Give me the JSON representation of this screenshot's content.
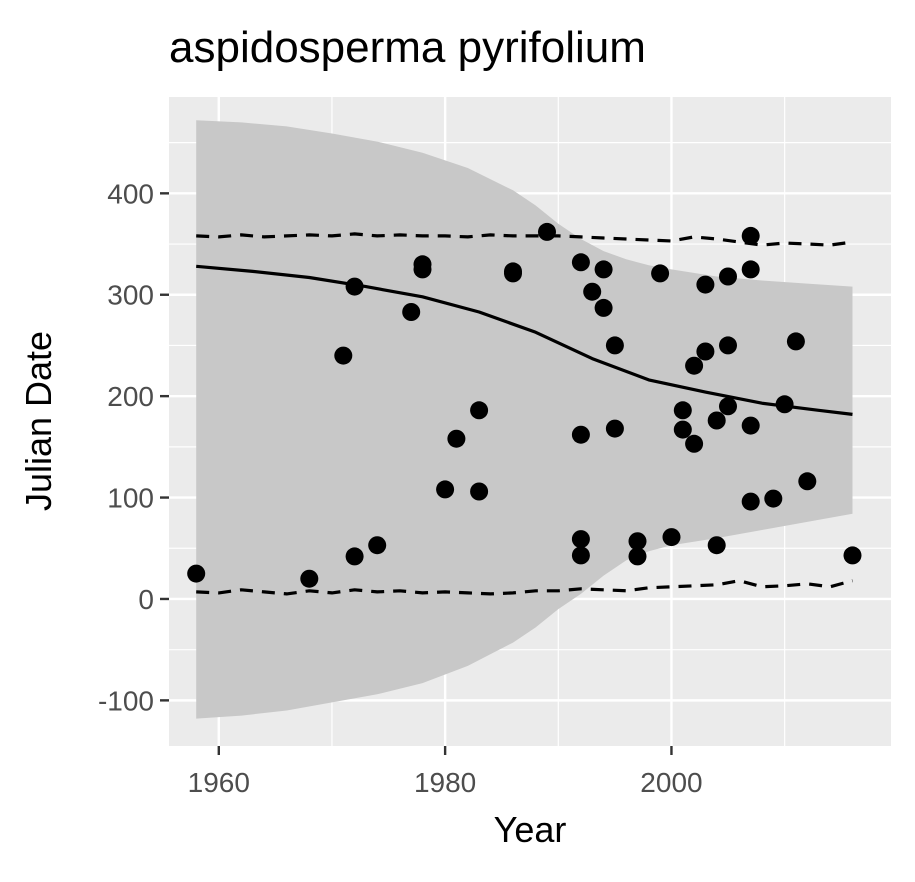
{
  "chart_data": {
    "type": "scatter",
    "title": "aspidosperma pyrifolium",
    "xlabel": "Year",
    "ylabel": "Julian Date",
    "xlim": [
      1955.6,
      2019.4
    ],
    "ylim": [
      -145,
      495
    ],
    "x_ticks": [
      1960,
      1980,
      2000
    ],
    "x_tick_labels": [
      "1960",
      "1980",
      "2000"
    ],
    "y_ticks": [
      -100,
      0,
      100,
      200,
      300,
      400
    ],
    "y_tick_labels": [
      "-100",
      "0",
      "100",
      "200",
      "300",
      "400"
    ],
    "grid": true,
    "legend": "none",
    "colors": {
      "panel": "#EBEBEB",
      "grid": "#FFFFFF",
      "points": "#000000",
      "ribbon": "#C8C8C8",
      "tick_label": "#4D4D4D"
    },
    "series": [
      {
        "type": "scatter",
        "points": [
          [
            1958,
            25
          ],
          [
            1968,
            20
          ],
          [
            1971,
            240
          ],
          [
            1972,
            308
          ],
          [
            1972,
            42
          ],
          [
            1974,
            53
          ],
          [
            1977,
            283
          ],
          [
            1978,
            330
          ],
          [
            1978,
            325
          ],
          [
            1980,
            108
          ],
          [
            1981,
            158
          ],
          [
            1983,
            186
          ],
          [
            1983,
            106
          ],
          [
            1986,
            323
          ],
          [
            1986,
            321
          ],
          [
            1989,
            362
          ],
          [
            1992,
            332
          ],
          [
            1992,
            162
          ],
          [
            1992,
            59
          ],
          [
            1992,
            43
          ],
          [
            1993,
            303
          ],
          [
            1994,
            325
          ],
          [
            1994,
            287
          ],
          [
            1995,
            250
          ],
          [
            1995,
            168
          ],
          [
            1997,
            57
          ],
          [
            1997,
            42
          ],
          [
            1999,
            321
          ],
          [
            2000,
            61
          ],
          [
            2001,
            186
          ],
          [
            2001,
            167
          ],
          [
            2002,
            230
          ],
          [
            2002,
            153
          ],
          [
            2003,
            310
          ],
          [
            2003,
            244
          ],
          [
            2004,
            176
          ],
          [
            2004,
            53
          ],
          [
            2005,
            318
          ],
          [
            2005,
            250
          ],
          [
            2005,
            190
          ],
          [
            2007,
            358
          ],
          [
            2007,
            325
          ],
          [
            2007,
            171
          ],
          [
            2007,
            96
          ],
          [
            2009,
            99
          ],
          [
            2010,
            192
          ],
          [
            2011,
            254
          ],
          [
            2012,
            116
          ],
          [
            2016,
            43
          ]
        ]
      },
      {
        "type": "line",
        "style": "solid",
        "x": [
          1958,
          1963,
          1968,
          1973,
          1978,
          1983,
          1988,
          1993,
          1998,
          2003,
          2008,
          2013,
          2016
        ],
        "y": [
          328,
          323,
          317,
          308,
          298,
          283,
          263,
          237,
          216,
          204,
          193,
          186,
          182
        ]
      },
      {
        "type": "line",
        "style": "dashed",
        "x": [
          1958,
          1960,
          1962,
          1964,
          1966,
          1968,
          1970,
          1972,
          1974,
          1976,
          1978,
          1980,
          1982,
          1984,
          1986,
          1988,
          1990,
          1992,
          1994,
          1996,
          1998,
          2000,
          2002,
          2004,
          2006,
          2008,
          2010,
          2012,
          2014,
          2016
        ],
        "y": [
          358,
          357,
          359,
          357,
          358,
          359,
          358,
          360,
          358,
          359,
          358,
          358,
          357,
          359,
          358,
          358,
          358,
          357,
          356,
          355,
          354,
          353,
          357,
          355,
          352,
          349,
          351,
          350,
          349,
          352
        ]
      },
      {
        "type": "line",
        "style": "dashed",
        "x": [
          1958,
          1960,
          1962,
          1964,
          1966,
          1968,
          1970,
          1972,
          1974,
          1976,
          1978,
          1980,
          1982,
          1984,
          1986,
          1988,
          1990,
          1992,
          1994,
          1996,
          1998,
          2000,
          2002,
          2004,
          2006,
          2008,
          2010,
          2012,
          2014,
          2016
        ],
        "y": [
          7,
          6,
          9,
          7,
          5,
          8,
          6,
          9,
          7,
          8,
          6,
          7,
          6,
          5,
          6,
          8,
          8,
          10,
          9,
          8,
          11,
          12,
          13,
          14,
          18,
          12,
          13,
          15,
          12,
          18
        ]
      },
      {
        "type": "area",
        "x": [
          1958,
          1962,
          1966,
          1970,
          1974,
          1978,
          1982,
          1986,
          1988,
          1990,
          1992,
          1994,
          1996,
          1998,
          2000,
          2004,
          2008,
          2012,
          2016
        ],
        "upper": [
          472,
          470,
          466,
          459,
          451,
          440,
          425,
          403,
          388,
          370,
          355,
          343,
          335,
          329,
          325,
          318,
          314,
          311,
          308
        ],
        "lower": [
          -118,
          -115,
          -110,
          -102,
          -94,
          -83,
          -66,
          -43,
          -28,
          -10,
          5,
          23,
          38,
          47,
          53,
          60,
          68,
          76,
          84
        ]
      }
    ]
  }
}
